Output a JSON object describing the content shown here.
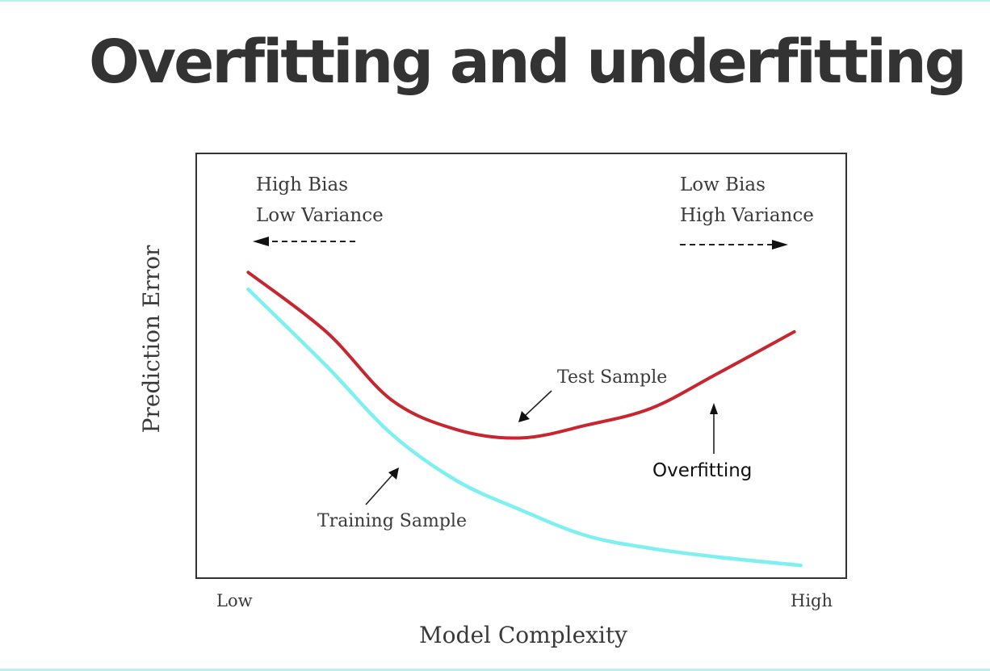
{
  "slide": {
    "title": "Overfitting and underfitting"
  },
  "chart_data": {
    "type": "line",
    "title": "",
    "xlabel": "Model Complexity",
    "ylabel": "Prediction Error",
    "x_tick_labels": [
      "Low",
      "High"
    ],
    "xlim": [
      0,
      1
    ],
    "ylim": [
      0,
      1
    ],
    "grid": false,
    "annotations": {
      "left_region": [
        "High Bias",
        "Low Variance"
      ],
      "right_region": [
        "Low Bias",
        "High Variance"
      ],
      "test_label": "Test Sample",
      "training_label": "Training Sample",
      "overfitting_label": "Overfitting"
    },
    "series": [
      {
        "name": "Test Sample",
        "color": "#c8262e",
        "x": [
          0.08,
          0.2,
          0.3,
          0.4,
          0.5,
          0.6,
          0.7,
          0.8,
          0.92
        ],
        "y": [
          0.72,
          0.58,
          0.42,
          0.35,
          0.33,
          0.36,
          0.4,
          0.48,
          0.58
        ]
      },
      {
        "name": "Training Sample",
        "color": "#7ef0f0",
        "x": [
          0.08,
          0.2,
          0.3,
          0.4,
          0.5,
          0.6,
          0.7,
          0.8,
          0.93
        ],
        "y": [
          0.68,
          0.5,
          0.34,
          0.23,
          0.16,
          0.1,
          0.07,
          0.05,
          0.03
        ]
      }
    ]
  }
}
